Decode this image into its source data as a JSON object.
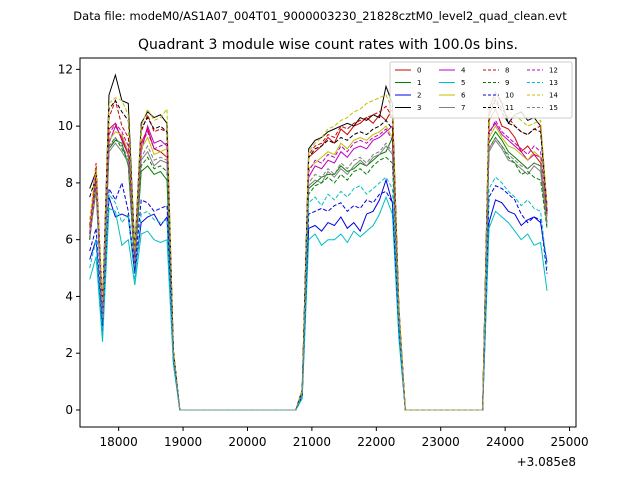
{
  "chart_data": {
    "type": "line",
    "suptitle": "Data file: modeM0/AS1A07_004T01_9000003230_21828cztM0_level2_quad_clean.evt",
    "title": "Quadrant 3 module wise count rates with 100.0s bins.",
    "xlabel": "",
    "ylabel": "",
    "x_offset_label": "+3.085e8",
    "xlim": [
      17400,
      25100
    ],
    "ylim": [
      -0.6,
      12.4
    ],
    "x_ticks": [
      18000,
      19000,
      20000,
      21000,
      22000,
      23000,
      24000,
      25000
    ],
    "x_tick_labels": [
      "18000",
      "19000",
      "20000",
      "21000",
      "22000",
      "23000",
      "24000",
      "25000"
    ],
    "y_ticks": [
      0,
      2,
      4,
      6,
      8,
      10,
      12
    ],
    "y_tick_labels": [
      "0",
      "2",
      "4",
      "6",
      "8",
      "10",
      "12"
    ],
    "grid": false,
    "legend_position": "top-right",
    "legend_columns": 4,
    "segments": [
      {
        "t0": 17550,
        "n": 14
      },
      {
        "t0": 18950,
        "n": 18
      },
      {
        "t0": 20750,
        "n": 17
      },
      {
        "t0": 22450,
        "n": 12
      },
      {
        "t0": 23650,
        "n": 11
      }
    ],
    "series": [
      {
        "name": "0",
        "color": "#d00000",
        "dash": "solid",
        "values": [
          6.2,
          8.5,
          3.5,
          9.9,
          10.1,
          9.5,
          9.0,
          5.2,
          9.4,
          9.9,
          9.2,
          9.1,
          8.9,
          2.0,
          0,
          0,
          0,
          0,
          0,
          0,
          0,
          0,
          0,
          0,
          0,
          0,
          0,
          0,
          0,
          0,
          0,
          0,
          0,
          0.7,
          8.9,
          9.1,
          9.3,
          9.6,
          9.4,
          9.9,
          9.7,
          10.0,
          10.1,
          10.3,
          10.1,
          10.4,
          10.2,
          10.6,
          3.5,
          0,
          0,
          0,
          0,
          0,
          0,
          0,
          0,
          0,
          0,
          0,
          0,
          0,
          10.2,
          10.6,
          10.0,
          9.9,
          9.6,
          9.1,
          9.3,
          9.0,
          8.7,
          6.9
        ]
      },
      {
        "name": "1",
        "color": "#008000",
        "dash": "solid",
        "values": [
          6.0,
          8.1,
          3.3,
          9.2,
          9.5,
          9.4,
          8.6,
          5.0,
          8.4,
          8.6,
          8.3,
          8.4,
          8.1,
          1.9,
          0,
          0,
          0,
          0,
          0,
          0,
          0,
          0,
          0,
          0,
          0,
          0,
          0,
          0,
          0,
          0,
          0,
          0,
          0,
          0.6,
          7.8,
          8.0,
          8.2,
          8.3,
          8.3,
          8.6,
          8.4,
          8.5,
          8.7,
          8.6,
          8.8,
          9.0,
          9.1,
          9.6,
          3.3,
          0,
          0,
          0,
          0,
          0,
          0,
          0,
          0,
          0,
          0,
          0,
          0,
          0,
          9.4,
          9.8,
          9.5,
          9.1,
          8.9,
          8.7,
          8.5,
          8.7,
          8.6,
          6.6
        ]
      },
      {
        "name": "2",
        "color": "#0000e0",
        "dash": "solid",
        "values": [
          5.3,
          6.0,
          2.7,
          7.5,
          6.8,
          6.9,
          6.8,
          4.8,
          6.6,
          6.8,
          6.9,
          6.5,
          6.8,
          1.8,
          0,
          0,
          0,
          0,
          0,
          0,
          0,
          0,
          0,
          0,
          0,
          0,
          0,
          0,
          0,
          0,
          0,
          0,
          0,
          0.5,
          6.4,
          6.5,
          6.3,
          6.6,
          6.5,
          6.8,
          6.4,
          6.6,
          6.3,
          6.9,
          7.0,
          7.4,
          8.1,
          7.3,
          2.8,
          0,
          0,
          0,
          0,
          0,
          0,
          0,
          0,
          0,
          0,
          0,
          0,
          0,
          6.6,
          7.4,
          7.3,
          7.0,
          6.9,
          6.5,
          6.7,
          6.8,
          6.6,
          5.2
        ]
      },
      {
        "name": "3",
        "color": "#000000",
        "dash": "solid",
        "values": [
          7.8,
          8.4,
          3.6,
          11.1,
          11.8,
          10.9,
          10.8,
          5.6,
          10.1,
          10.5,
          10.3,
          10.4,
          10.1,
          2.1,
          0,
          0,
          0,
          0,
          0,
          0,
          0,
          0,
          0,
          0,
          0,
          0,
          0,
          0,
          0,
          0,
          0,
          0,
          0,
          0.7,
          9.2,
          9.5,
          9.6,
          9.8,
          9.9,
          10.0,
          10.1,
          10.0,
          10.3,
          10.2,
          10.4,
          10.3,
          11.4,
          10.8,
          3.6,
          0,
          0,
          0,
          0,
          0,
          0,
          0,
          0,
          0,
          0,
          0,
          0,
          0,
          10.6,
          11.2,
          10.8,
          10.1,
          10.4,
          10.5,
          10.2,
          10.3,
          10.0,
          7.2
        ]
      },
      {
        "name": "4",
        "color": "#c000c0",
        "dash": "solid",
        "values": [
          6.4,
          7.9,
          3.3,
          9.4,
          10.0,
          9.6,
          9.0,
          5.1,
          9.1,
          10.0,
          9.4,
          9.5,
          9.3,
          2.0,
          0,
          0,
          0,
          0,
          0,
          0,
          0,
          0,
          0,
          0,
          0,
          0,
          0,
          0,
          0,
          0,
          0,
          0,
          0,
          0.6,
          8.2,
          8.6,
          8.5,
          8.8,
          8.7,
          9.1,
          8.9,
          9.2,
          9.3,
          9.2,
          9.5,
          9.6,
          9.8,
          10.0,
          3.4,
          0,
          0,
          0,
          0,
          0,
          0,
          0,
          0,
          0,
          0,
          0,
          0,
          0,
          9.8,
          10.1,
          9.7,
          9.5,
          9.3,
          9.1,
          8.8,
          9.0,
          8.9,
          6.8
        ]
      },
      {
        "name": "5",
        "color": "#00bfbf",
        "dash": "solid",
        "values": [
          4.6,
          5.4,
          2.4,
          7.1,
          7.0,
          5.8,
          6.0,
          4.4,
          6.2,
          6.3,
          6.0,
          5.9,
          6.0,
          1.6,
          0,
          0,
          0,
          0,
          0,
          0,
          0,
          0,
          0,
          0,
          0,
          0,
          0,
          0,
          0,
          0,
          0,
          0,
          0,
          0.4,
          6.0,
          6.2,
          5.8,
          6.0,
          6.0,
          6.2,
          5.9,
          6.3,
          6.1,
          6.3,
          6.5,
          6.9,
          7.5,
          6.9,
          2.5,
          0,
          0,
          0,
          0,
          0,
          0,
          0,
          0,
          0,
          0,
          0,
          0,
          0,
          6.4,
          7.0,
          6.8,
          6.6,
          6.3,
          6.0,
          6.2,
          5.8,
          5.9,
          4.2
        ]
      },
      {
        "name": "6",
        "color": "#bfbf00",
        "dash": "solid",
        "values": [
          6.3,
          8.0,
          3.4,
          9.5,
          9.8,
          9.7,
          9.1,
          5.2,
          9.2,
          9.6,
          9.0,
          9.1,
          9.2,
          2.0,
          0,
          0,
          0,
          0,
          0,
          0,
          0,
          0,
          0,
          0,
          0,
          0,
          0,
          0,
          0,
          0,
          0,
          0,
          0,
          0.6,
          8.5,
          8.7,
          8.9,
          9.1,
          9.0,
          9.4,
          9.2,
          9.5,
          9.6,
          9.5,
          9.7,
          9.8,
          10.0,
          9.6,
          3.4,
          0,
          0,
          0,
          0,
          0,
          0,
          0,
          0,
          0,
          0,
          0,
          0,
          0,
          9.6,
          10.0,
          9.6,
          9.3,
          9.2,
          9.0,
          8.8,
          9.1,
          8.9,
          6.8
        ]
      },
      {
        "name": "7",
        "color": "#808080",
        "dash": "solid",
        "values": [
          6.1,
          7.7,
          3.2,
          9.1,
          9.4,
          9.1,
          8.7,
          5.0,
          8.8,
          9.1,
          8.6,
          8.8,
          8.7,
          1.9,
          0,
          0,
          0,
          0,
          0,
          0,
          0,
          0,
          0,
          0,
          0,
          0,
          0,
          0,
          0,
          0,
          0,
          0,
          0,
          0.6,
          7.9,
          8.1,
          8.0,
          8.4,
          8.2,
          8.5,
          8.3,
          8.6,
          8.8,
          8.6,
          8.9,
          9.0,
          9.3,
          9.0,
          3.2,
          0,
          0,
          0,
          0,
          0,
          0,
          0,
          0,
          0,
          0,
          0,
          0,
          0,
          9.1,
          9.5,
          9.2,
          8.8,
          8.7,
          8.5,
          8.3,
          8.6,
          8.4,
          6.5
        ]
      },
      {
        "name": "8",
        "color": "#d00000",
        "dash": "dashed",
        "values": [
          6.5,
          8.7,
          3.7,
          10.3,
          10.9,
          10.0,
          9.6,
          5.4,
          9.8,
          10.4,
          9.8,
          9.9,
          9.8,
          2.0,
          0,
          0,
          0,
          0,
          0,
          0,
          0,
          0,
          0,
          0,
          0,
          0,
          0,
          0,
          0,
          0,
          0,
          0,
          0,
          0.7,
          9.0,
          9.3,
          9.4,
          9.7,
          9.6,
          10.0,
          9.9,
          10.1,
          10.2,
          10.3,
          10.4,
          10.5,
          10.7,
          10.3,
          3.6,
          0,
          0,
          0,
          0,
          0,
          0,
          0,
          0,
          0,
          0,
          0,
          0,
          0,
          10.4,
          11.0,
          10.6,
          10.3,
          10.0,
          9.8,
          9.7,
          9.9,
          10.0,
          7.0
        ]
      },
      {
        "name": "9",
        "color": "#008000",
        "dash": "dashed",
        "values": [
          6.0,
          8.0,
          3.3,
          9.3,
          9.6,
          9.2,
          8.8,
          5.0,
          8.6,
          8.9,
          8.5,
          8.6,
          8.4,
          1.9,
          0,
          0,
          0,
          0,
          0,
          0,
          0,
          0,
          0,
          0,
          0,
          0,
          0,
          0,
          0,
          0,
          0,
          0,
          0,
          0.6,
          7.6,
          7.9,
          8.0,
          8.2,
          8.0,
          8.3,
          8.1,
          8.4,
          8.5,
          8.3,
          8.6,
          8.8,
          8.9,
          8.7,
          3.2,
          0,
          0,
          0,
          0,
          0,
          0,
          0,
          0,
          0,
          0,
          0,
          0,
          0,
          9.2,
          9.6,
          9.3,
          8.9,
          8.7,
          8.3,
          8.4,
          8.2,
          8.1,
          6.4
        ]
      },
      {
        "name": "10",
        "color": "#0000e0",
        "dash": "dashed",
        "values": [
          5.6,
          6.4,
          2.9,
          7.8,
          7.4,
          8.0,
          7.0,
          4.9,
          7.4,
          7.3,
          7.0,
          7.1,
          7.2,
          1.8,
          0,
          0,
          0,
          0,
          0,
          0,
          0,
          0,
          0,
          0,
          0,
          0,
          0,
          0,
          0,
          0,
          0,
          0,
          0,
          0.5,
          6.9,
          7.0,
          7.1,
          7.0,
          7.2,
          7.3,
          7.0,
          7.2,
          7.1,
          7.4,
          7.3,
          7.6,
          7.7,
          7.3,
          2.9,
          0,
          0,
          0,
          0,
          0,
          0,
          0,
          0,
          0,
          0,
          0,
          0,
          0,
          7.5,
          7.9,
          7.8,
          7.6,
          7.4,
          6.9,
          6.6,
          6.8,
          6.7,
          4.8
        ]
      },
      {
        "name": "11",
        "color": "#000000",
        "dash": "dashed",
        "values": [
          7.5,
          8.2,
          3.6,
          10.6,
          10.9,
          10.5,
          10.2,
          5.5,
          9.9,
          10.3,
          9.9,
          10.0,
          9.8,
          2.1,
          0,
          0,
          0,
          0,
          0,
          0,
          0,
          0,
          0,
          0,
          0,
          0,
          0,
          0,
          0,
          0,
          0,
          0,
          0,
          0.7,
          8.9,
          9.2,
          9.3,
          9.5,
          9.4,
          9.6,
          9.5,
          9.7,
          9.8,
          9.7,
          9.9,
          10.0,
          10.2,
          9.9,
          3.5,
          0,
          0,
          0,
          0,
          0,
          0,
          0,
          0,
          0,
          0,
          0,
          0,
          0,
          10.4,
          10.9,
          10.5,
          10.1,
          10.0,
          9.8,
          9.7,
          9.9,
          9.8,
          7.0
        ]
      },
      {
        "name": "12",
        "color": "#c000c0",
        "dash": "dashed",
        "values": [
          6.2,
          8.2,
          3.4,
          9.7,
          10.1,
          9.8,
          9.3,
          5.2,
          9.3,
          9.8,
          9.2,
          9.3,
          9.4,
          2.0,
          0,
          0,
          0,
          0,
          0,
          0,
          0,
          0,
          0,
          0,
          0,
          0,
          0,
          0,
          0,
          0,
          0,
          0,
          0,
          0.6,
          8.4,
          8.8,
          8.7,
          9.0,
          8.9,
          9.3,
          9.1,
          9.4,
          9.5,
          9.4,
          9.6,
          9.7,
          9.9,
          9.5,
          3.4,
          0,
          0,
          0,
          0,
          0,
          0,
          0,
          0,
          0,
          0,
          0,
          0,
          0,
          9.7,
          10.2,
          9.8,
          9.6,
          9.4,
          9.2,
          9.0,
          9.3,
          9.1,
          6.9
        ]
      },
      {
        "name": "13",
        "color": "#00bfbf",
        "dash": "dashed",
        "values": [
          5.0,
          6.0,
          2.6,
          7.6,
          7.3,
          6.6,
          6.9,
          4.6,
          6.9,
          7.0,
          6.7,
          6.6,
          6.7,
          1.7,
          0,
          0,
          0,
          0,
          0,
          0,
          0,
          0,
          0,
          0,
          0,
          0,
          0,
          0,
          0,
          0,
          0,
          0,
          0,
          0.5,
          7.3,
          7.5,
          7.2,
          7.6,
          7.4,
          7.7,
          7.5,
          7.8,
          7.9,
          7.6,
          7.8,
          8.0,
          8.2,
          7.8,
          3.0,
          0,
          0,
          0,
          0,
          0,
          0,
          0,
          0,
          0,
          0,
          0,
          0,
          0,
          7.8,
          8.2,
          8.0,
          7.7,
          7.5,
          7.2,
          7.4,
          7.1,
          7.0,
          5.0
        ]
      },
      {
        "name": "14",
        "color": "#bfbf00",
        "dash": "dashed",
        "values": [
          6.7,
          8.5,
          3.8,
          10.8,
          11.0,
          10.9,
          10.4,
          5.6,
          10.0,
          10.6,
          10.2,
          10.3,
          10.6,
          2.1,
          0,
          0,
          0,
          0,
          0,
          0,
          0,
          0,
          0,
          0,
          0,
          0,
          0,
          0,
          0,
          0,
          0,
          0,
          0,
          0.7,
          9.1,
          9.4,
          9.6,
          9.9,
          10.0,
          10.2,
          10.3,
          10.5,
          10.6,
          10.8,
          10.9,
          11.0,
          11.1,
          10.6,
          3.7,
          0,
          0,
          0,
          0,
          0,
          0,
          0,
          0,
          0,
          0,
          0,
          0,
          0,
          10.7,
          11.2,
          10.9,
          10.5,
          10.4,
          10.2,
          10.0,
          10.1,
          10.2,
          7.2
        ]
      },
      {
        "name": "15",
        "color": "#808080",
        "dash": "dashed",
        "values": [
          6.1,
          7.8,
          3.2,
          9.2,
          9.6,
          9.3,
          8.9,
          5.0,
          8.9,
          9.3,
          8.8,
          8.9,
          8.8,
          1.9,
          0,
          0,
          0,
          0,
          0,
          0,
          0,
          0,
          0,
          0,
          0,
          0,
          0,
          0,
          0,
          0,
          0,
          0,
          0,
          0.6,
          8.0,
          8.3,
          8.2,
          8.5,
          8.3,
          8.7,
          8.5,
          8.8,
          8.9,
          8.7,
          9.0,
          9.1,
          9.4,
          9.1,
          3.3,
          0,
          0,
          0,
          0,
          0,
          0,
          0,
          0,
          0,
          0,
          0,
          0,
          0,
          9.2,
          9.6,
          9.3,
          9.0,
          8.8,
          8.6,
          8.5,
          8.7,
          8.6,
          6.6
        ]
      }
    ]
  }
}
